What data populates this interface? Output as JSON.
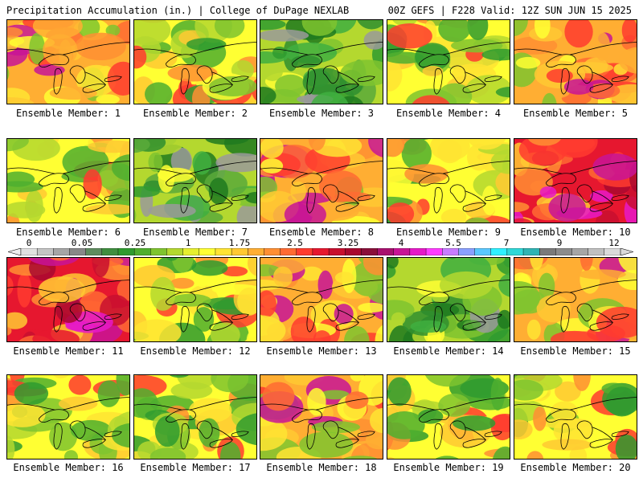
{
  "header": {
    "left_title": "Precipitation Accumulation (in.) | College of DuPage NEXLAB",
    "right_title": "00Z GEFS | F228 Valid: 12Z SUN JUN 15 2025"
  },
  "panels": [
    {
      "label": "Ensemble Member: 1",
      "palette": "wet"
    },
    {
      "label": "Ensemble Member: 2",
      "palette": "mixed"
    },
    {
      "label": "Ensemble Member: 3",
      "palette": "dry"
    },
    {
      "label": "Ensemble Member: 4",
      "palette": "mixed"
    },
    {
      "label": "Ensemble Member: 5",
      "palette": "wet"
    },
    {
      "label": "Ensemble Member: 6",
      "palette": "mixed"
    },
    {
      "label": "Ensemble Member: 7",
      "palette": "dry"
    },
    {
      "label": "Ensemble Member: 8",
      "palette": "wet"
    },
    {
      "label": "Ensemble Member: 9",
      "palette": "mixed"
    },
    {
      "label": "Ensemble Member: 10",
      "palette": "verywet"
    },
    {
      "label": "Ensemble Member: 11",
      "palette": "verywet"
    },
    {
      "label": "Ensemble Member: 12",
      "palette": "mixed"
    },
    {
      "label": "Ensemble Member: 13",
      "palette": "wet"
    },
    {
      "label": "Ensemble Member: 14",
      "palette": "dry"
    },
    {
      "label": "Ensemble Member: 15",
      "palette": "wet"
    },
    {
      "label": "Ensemble Member: 16",
      "palette": "mixed"
    },
    {
      "label": "Ensemble Member: 17",
      "palette": "mixed"
    },
    {
      "label": "Ensemble Member: 18",
      "palette": "wet"
    },
    {
      "label": "Ensemble Member: 19",
      "palette": "mixed"
    },
    {
      "label": "Ensemble Member: 20",
      "palette": "mixed"
    }
  ],
  "colorbar": {
    "tick_labels": [
      "0",
      "0.05",
      "0.25",
      "1",
      "1.75",
      "2.5",
      "3.25",
      "4",
      "5.5",
      "7",
      "9",
      "12"
    ],
    "colors": [
      "#e0e0e0",
      "#c4c4c4",
      "#a6a6a6",
      "#888888",
      "#5e8c5e",
      "#3f8f3f",
      "#2f9b2f",
      "#4faf2f",
      "#7fc42f",
      "#b4d82f",
      "#e6ee2f",
      "#ffff33",
      "#ffe433",
      "#ffc933",
      "#ffae33",
      "#ff8f33",
      "#ff6b33",
      "#ff3b2f",
      "#e6172f",
      "#c80f2f",
      "#a8082f",
      "#8a0f3a",
      "#a8106e",
      "#c81496",
      "#e619c8",
      "#ff3bff",
      "#c87cff",
      "#8aa0ff",
      "#5ac8ff",
      "#2ff0ff",
      "#2fd8d8",
      "#2fb4b4",
      "#7a7a7a",
      "#8c8c8c",
      "#a6a6a6",
      "#c0c0c0",
      "#dadada"
    ]
  }
}
